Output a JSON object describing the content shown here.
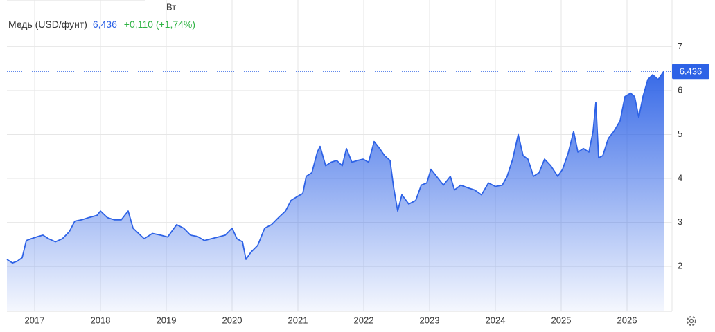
{
  "chart_data": {
    "type": "area",
    "top_label": "Вт",
    "title": "Медь (USD/фунт)",
    "price": "6,436",
    "change": "+0,110 (+1,74%)",
    "color": "#2d62e6",
    "x": [
      2016.579,
      2016.663,
      2016.737,
      2016.811,
      2016.874,
      2016.947,
      2017.053,
      2017.126,
      2017.211,
      2017.316,
      2017.421,
      2017.526,
      2017.611,
      2017.716,
      2017.821,
      2017.947,
      2018.0,
      2018.105,
      2018.211,
      2018.316,
      2018.421,
      2018.495,
      2018.579,
      2018.663,
      2018.789,
      2018.916,
      2019.021,
      2019.158,
      2019.263,
      2019.368,
      2019.474,
      2019.579,
      2019.684,
      2019.789,
      2019.895,
      2020.0,
      2020.074,
      2020.158,
      2020.211,
      2020.284,
      2020.389,
      2020.495,
      2020.6,
      2020.705,
      2020.811,
      2020.895,
      2020.979,
      2021.074,
      2021.126,
      2021.211,
      2021.295,
      2021.337,
      2021.421,
      2021.505,
      2021.589,
      2021.674,
      2021.737,
      2021.821,
      2021.905,
      2021.989,
      2022.074,
      2022.158,
      2022.242,
      2022.316,
      2022.4,
      2022.453,
      2022.516,
      2022.579,
      2022.684,
      2022.789,
      2022.874,
      2022.958,
      2023.021,
      2023.105,
      2023.211,
      2023.316,
      2023.379,
      2023.474,
      2023.579,
      2023.684,
      2023.789,
      2023.895,
      2024.0,
      2024.105,
      2024.179,
      2024.263,
      2024.347,
      2024.421,
      2024.495,
      2024.579,
      2024.663,
      2024.747,
      2024.842,
      2024.947,
      2025.021,
      2025.105,
      2025.189,
      2025.253,
      2025.337,
      2025.421,
      2025.484,
      2025.526,
      2025.568,
      2025.632,
      2025.716,
      2025.8,
      2025.895,
      2025.968,
      2026.053,
      2026.116,
      2026.179,
      2026.242,
      2026.316,
      2026.389,
      2026.474,
      2026.558
    ],
    "values": [
      2.16,
      2.08,
      2.12,
      2.2,
      2.59,
      2.63,
      2.68,
      2.71,
      2.63,
      2.56,
      2.63,
      2.79,
      3.03,
      3.06,
      3.11,
      3.16,
      3.26,
      3.11,
      3.06,
      3.06,
      3.26,
      2.87,
      2.75,
      2.63,
      2.75,
      2.71,
      2.67,
      2.95,
      2.87,
      2.71,
      2.68,
      2.59,
      2.63,
      2.67,
      2.71,
      2.87,
      2.63,
      2.56,
      2.16,
      2.32,
      2.48,
      2.87,
      2.95,
      3.11,
      3.26,
      3.5,
      3.58,
      3.66,
      4.05,
      4.13,
      4.6,
      4.73,
      4.29,
      4.37,
      4.41,
      4.29,
      4.68,
      4.37,
      4.41,
      4.44,
      4.37,
      4.84,
      4.68,
      4.52,
      4.41,
      3.81,
      3.26,
      3.63,
      3.42,
      3.5,
      3.85,
      3.9,
      4.21,
      4.05,
      3.85,
      4.05,
      3.74,
      3.85,
      3.79,
      3.74,
      3.63,
      3.9,
      3.82,
      3.85,
      4.05,
      4.44,
      5.0,
      4.52,
      4.44,
      4.05,
      4.13,
      4.44,
      4.29,
      4.05,
      4.21,
      4.57,
      5.07,
      4.6,
      4.68,
      4.6,
      5.07,
      5.73,
      4.47,
      4.52,
      4.91,
      5.07,
      5.31,
      5.86,
      5.94,
      5.86,
      5.39,
      5.86,
      6.25,
      6.36,
      6.25,
      6.436
    ],
    "xlim": [
      2016.579,
      2026.684
    ],
    "xticks": [
      2017,
      2018,
      2019,
      2020,
      2021,
      2022,
      2023,
      2024,
      2025,
      2026
    ],
    "ylim": [
      0.98,
      8.06
    ],
    "yticks": [
      2,
      3,
      4,
      5,
      6,
      7
    ],
    "grid": true
  }
}
